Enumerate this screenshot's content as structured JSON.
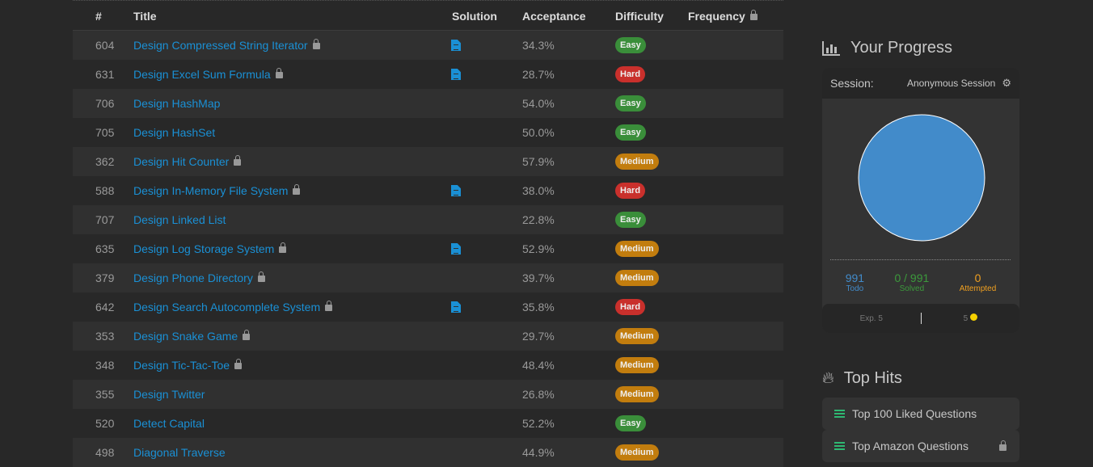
{
  "table": {
    "headers": {
      "num": "#",
      "title": "Title",
      "solution": "Solution",
      "acceptance": "Acceptance",
      "difficulty": "Difficulty",
      "frequency": "Frequency"
    },
    "rows": [
      {
        "num": "604",
        "title": "Design Compressed String Iterator",
        "locked": true,
        "solution": true,
        "acceptance": "34.3%",
        "difficulty": "Easy"
      },
      {
        "num": "631",
        "title": "Design Excel Sum Formula",
        "locked": true,
        "solution": true,
        "acceptance": "28.7%",
        "difficulty": "Hard"
      },
      {
        "num": "706",
        "title": "Design HashMap",
        "locked": false,
        "solution": false,
        "acceptance": "54.0%",
        "difficulty": "Easy"
      },
      {
        "num": "705",
        "title": "Design HashSet",
        "locked": false,
        "solution": false,
        "acceptance": "50.0%",
        "difficulty": "Easy"
      },
      {
        "num": "362",
        "title": "Design Hit Counter",
        "locked": true,
        "solution": false,
        "acceptance": "57.9%",
        "difficulty": "Medium"
      },
      {
        "num": "588",
        "title": "Design In-Memory File System",
        "locked": true,
        "solution": true,
        "acceptance": "38.0%",
        "difficulty": "Hard"
      },
      {
        "num": "707",
        "title": "Design Linked List",
        "locked": false,
        "solution": false,
        "acceptance": "22.8%",
        "difficulty": "Easy"
      },
      {
        "num": "635",
        "title": "Design Log Storage System",
        "locked": true,
        "solution": true,
        "acceptance": "52.9%",
        "difficulty": "Medium"
      },
      {
        "num": "379",
        "title": "Design Phone Directory",
        "locked": true,
        "solution": false,
        "acceptance": "39.7%",
        "difficulty": "Medium"
      },
      {
        "num": "642",
        "title": "Design Search Autocomplete System",
        "locked": true,
        "solution": true,
        "acceptance": "35.8%",
        "difficulty": "Hard"
      },
      {
        "num": "353",
        "title": "Design Snake Game",
        "locked": true,
        "solution": false,
        "acceptance": "29.7%",
        "difficulty": "Medium"
      },
      {
        "num": "348",
        "title": "Design Tic-Tac-Toe",
        "locked": true,
        "solution": false,
        "acceptance": "48.4%",
        "difficulty": "Medium"
      },
      {
        "num": "355",
        "title": "Design Twitter",
        "locked": false,
        "solution": false,
        "acceptance": "26.8%",
        "difficulty": "Medium"
      },
      {
        "num": "520",
        "title": "Detect Capital",
        "locked": false,
        "solution": false,
        "acceptance": "52.2%",
        "difficulty": "Easy"
      },
      {
        "num": "498",
        "title": "Diagonal Traverse",
        "locked": false,
        "solution": false,
        "acceptance": "44.9%",
        "difficulty": "Medium"
      }
    ]
  },
  "colors": {
    "Easy": "#3a8e3a",
    "Medium": "#c27d0e",
    "Hard": "#c9302c",
    "link": "#1a90d5",
    "todo": "#428bca",
    "solved": "#3c9a3c",
    "attempted": "#f0a020"
  },
  "progress": {
    "title": "Your Progress",
    "session_label": "Session:",
    "session_value": "Anonymous Session",
    "todo": "991",
    "todo_label": "Todo",
    "solved": "0 / 991",
    "solved_label": "Solved",
    "attempted": "0",
    "attempted_label": "Attempted",
    "exp": "Exp. 5",
    "coins": "5"
  },
  "top_hits": {
    "title": "Top Hits",
    "items": [
      {
        "label": "Top 100 Liked Questions",
        "locked": false
      },
      {
        "label": "Top Amazon Questions",
        "locked": true
      }
    ]
  }
}
